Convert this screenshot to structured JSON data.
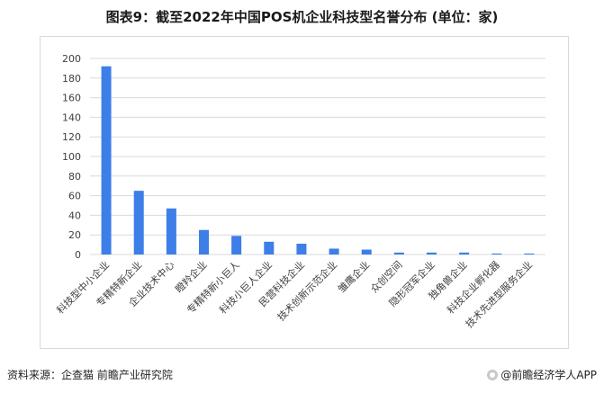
{
  "header": {
    "title": "图表9：截至2022年中国POS机企业科技型名誉分布 (单位：家)"
  },
  "footer": {
    "source": "资料来源：企查猫 前瞻产业研究院",
    "brand": "@前瞻经济学人APP"
  },
  "colors": {
    "bar": "#3d7ee8",
    "grid": "#d9d9d9",
    "axis_text": "#404040"
  },
  "chart_data": {
    "type": "bar",
    "title": "图表9：截至2022年中国POS机企业科技型名誉分布 (单位：家)",
    "categories": [
      "科技型中小企业",
      "专精特新企业",
      "企业技术中心",
      "瞪羚企业",
      "专精特新小巨人",
      "科技小巨人企业",
      "民营科技企业",
      "技术创新示范企业",
      "雏鹰企业",
      "众创空间",
      "隐形冠军企业",
      "独角兽企业",
      "科技企业孵化器",
      "技术先进型服务企业"
    ],
    "values": [
      192,
      65,
      47,
      25,
      19,
      13,
      11,
      6,
      5,
      2,
      2,
      2,
      1,
      1
    ],
    "ylim": [
      0,
      200
    ],
    "yticks": [
      0,
      20,
      40,
      60,
      80,
      100,
      120,
      140,
      160,
      180,
      200
    ],
    "grid": true,
    "legend": "none"
  }
}
